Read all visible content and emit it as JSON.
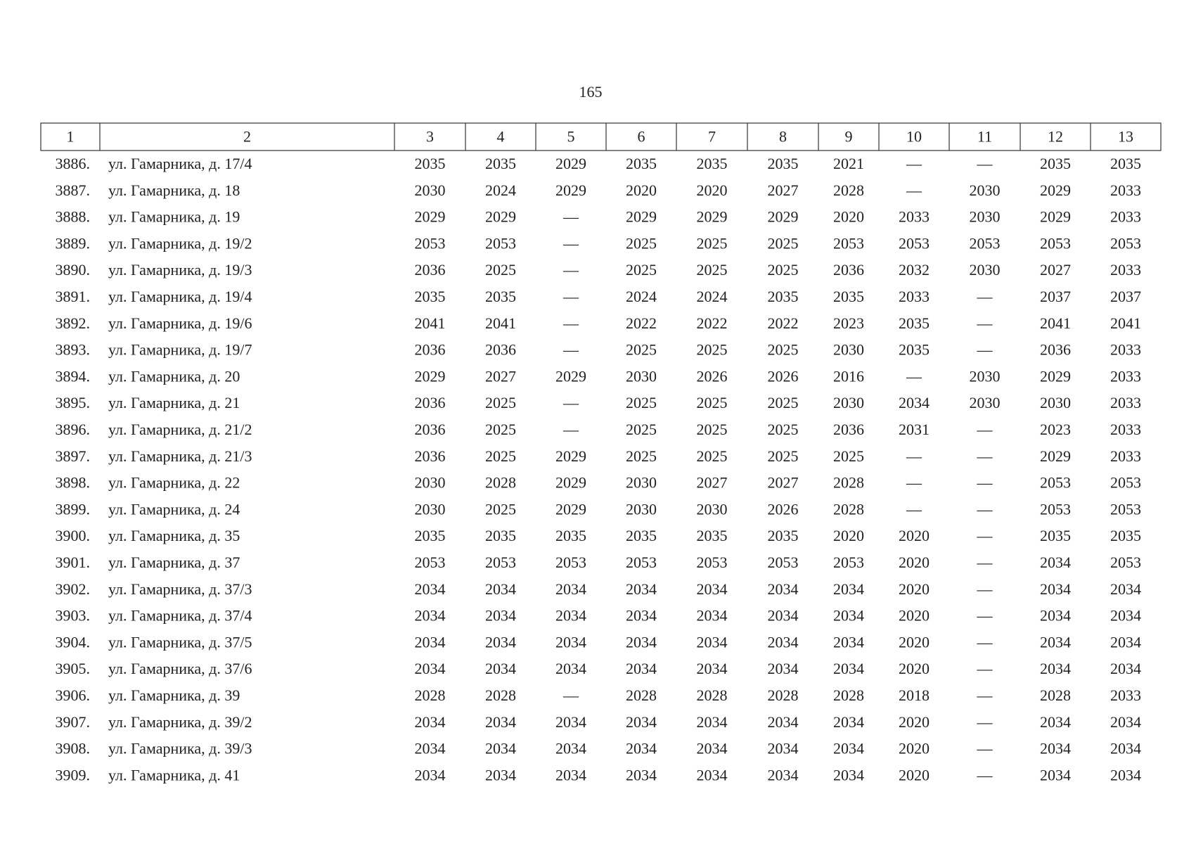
{
  "page_number": "165",
  "table": {
    "header": [
      "1",
      "2",
      "3",
      "4",
      "5",
      "6",
      "7",
      "8",
      "9",
      "10",
      "11",
      "12",
      "13"
    ],
    "rows": [
      [
        "3886.",
        "ул. Гамарника, д. 17/4",
        "2035",
        "2035",
        "2029",
        "2035",
        "2035",
        "2035",
        "2021",
        "—",
        "—",
        "2035",
        "2035"
      ],
      [
        "3887.",
        "ул. Гамарника, д. 18",
        "2030",
        "2024",
        "2029",
        "2020",
        "2020",
        "2027",
        "2028",
        "—",
        "2030",
        "2029",
        "2033"
      ],
      [
        "3888.",
        "ул. Гамарника, д. 19",
        "2029",
        "2029",
        "—",
        "2029",
        "2029",
        "2029",
        "2020",
        "2033",
        "2030",
        "2029",
        "2033"
      ],
      [
        "3889.",
        "ул. Гамарника, д. 19/2",
        "2053",
        "2053",
        "—",
        "2025",
        "2025",
        "2025",
        "2053",
        "2053",
        "2053",
        "2053",
        "2053"
      ],
      [
        "3890.",
        "ул. Гамарника, д. 19/3",
        "2036",
        "2025",
        "—",
        "2025",
        "2025",
        "2025",
        "2036",
        "2032",
        "2030",
        "2027",
        "2033"
      ],
      [
        "3891.",
        "ул. Гамарника, д. 19/4",
        "2035",
        "2035",
        "—",
        "2024",
        "2024",
        "2035",
        "2035",
        "2033",
        "—",
        "2037",
        "2037"
      ],
      [
        "3892.",
        "ул. Гамарника, д. 19/6",
        "2041",
        "2041",
        "—",
        "2022",
        "2022",
        "2022",
        "2023",
        "2035",
        "—",
        "2041",
        "2041"
      ],
      [
        "3893.",
        "ул. Гамарника, д. 19/7",
        "2036",
        "2036",
        "—",
        "2025",
        "2025",
        "2025",
        "2030",
        "2035",
        "—",
        "2036",
        "2033"
      ],
      [
        "3894.",
        "ул. Гамарника, д. 20",
        "2029",
        "2027",
        "2029",
        "2030",
        "2026",
        "2026",
        "2016",
        "—",
        "2030",
        "2029",
        "2033"
      ],
      [
        "3895.",
        "ул. Гамарника, д. 21",
        "2036",
        "2025",
        "—",
        "2025",
        "2025",
        "2025",
        "2030",
        "2034",
        "2030",
        "2030",
        "2033"
      ],
      [
        "3896.",
        "ул. Гамарника, д. 21/2",
        "2036",
        "2025",
        "—",
        "2025",
        "2025",
        "2025",
        "2036",
        "2031",
        "—",
        "2023",
        "2033"
      ],
      [
        "3897.",
        "ул. Гамарника, д. 21/3",
        "2036",
        "2025",
        "2029",
        "2025",
        "2025",
        "2025",
        "2025",
        "—",
        "—",
        "2029",
        "2033"
      ],
      [
        "3898.",
        "ул. Гамарника, д. 22",
        "2030",
        "2028",
        "2029",
        "2030",
        "2027",
        "2027",
        "2028",
        "—",
        "—",
        "2053",
        "2053"
      ],
      [
        "3899.",
        "ул. Гамарника, д. 24",
        "2030",
        "2025",
        "2029",
        "2030",
        "2030",
        "2026",
        "2028",
        "—",
        "—",
        "2053",
        "2053"
      ],
      [
        "3900.",
        "ул. Гамарника, д. 35",
        "2035",
        "2035",
        "2035",
        "2035",
        "2035",
        "2035",
        "2020",
        "2020",
        "—",
        "2035",
        "2035"
      ],
      [
        "3901.",
        "ул. Гамарника, д. 37",
        "2053",
        "2053",
        "2053",
        "2053",
        "2053",
        "2053",
        "2053",
        "2020",
        "—",
        "2034",
        "2053"
      ],
      [
        "3902.",
        "ул. Гамарника, д. 37/3",
        "2034",
        "2034",
        "2034",
        "2034",
        "2034",
        "2034",
        "2034",
        "2020",
        "—",
        "2034",
        "2034"
      ],
      [
        "3903.",
        "ул. Гамарника, д. 37/4",
        "2034",
        "2034",
        "2034",
        "2034",
        "2034",
        "2034",
        "2034",
        "2020",
        "—",
        "2034",
        "2034"
      ],
      [
        "3904.",
        "ул. Гамарника, д. 37/5",
        "2034",
        "2034",
        "2034",
        "2034",
        "2034",
        "2034",
        "2034",
        "2020",
        "—",
        "2034",
        "2034"
      ],
      [
        "3905.",
        "ул. Гамарника, д. 37/6",
        "2034",
        "2034",
        "2034",
        "2034",
        "2034",
        "2034",
        "2034",
        "2020",
        "—",
        "2034",
        "2034"
      ],
      [
        "3906.",
        "ул. Гамарника, д. 39",
        "2028",
        "2028",
        "—",
        "2028",
        "2028",
        "2028",
        "2028",
        "2018",
        "—",
        "2028",
        "2033"
      ],
      [
        "3907.",
        "ул. Гамарника, д. 39/2",
        "2034",
        "2034",
        "2034",
        "2034",
        "2034",
        "2034",
        "2034",
        "2020",
        "—",
        "2034",
        "2034"
      ],
      [
        "3908.",
        "ул. Гамарника, д. 39/3",
        "2034",
        "2034",
        "2034",
        "2034",
        "2034",
        "2034",
        "2034",
        "2020",
        "—",
        "2034",
        "2034"
      ],
      [
        "3909.",
        "ул. Гамарника, д. 41",
        "2034",
        "2034",
        "2034",
        "2034",
        "2034",
        "2034",
        "2034",
        "2020",
        "—",
        "2034",
        "2034"
      ]
    ]
  }
}
